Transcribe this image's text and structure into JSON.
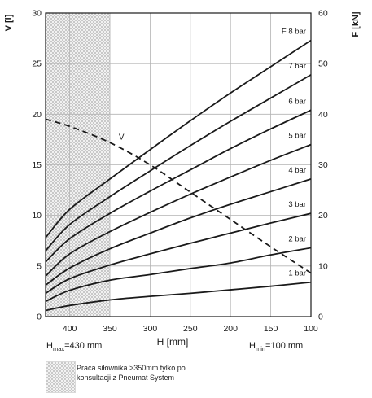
{
  "chart_data": {
    "type": "line",
    "xlabel": "H [mm]",
    "ylabel_left": "V [l]",
    "ylabel_right": "F [kN]",
    "x_ticks": [
      400,
      350,
      300,
      250,
      200,
      150,
      100
    ],
    "xlim": [
      430,
      100
    ],
    "x_reversed": true,
    "ylim_left": [
      0,
      30
    ],
    "ylim_right": [
      0,
      60
    ],
    "y_ticks_left": [
      0,
      5,
      10,
      15,
      20,
      25,
      30
    ],
    "y_ticks_right": [
      0,
      10,
      20,
      30,
      40,
      50,
      60
    ],
    "grid": true,
    "x_min_label": {
      "prefix": "H",
      "sub": "max",
      "suffix": "=430 mm"
    },
    "x_max_label": {
      "prefix": "H",
      "sub": "min",
      "suffix": "=100 mm"
    },
    "shaded_region": {
      "x_from": 430,
      "x_to": 350
    },
    "legend_text": "Praca siłownika >350mm tylko po konsultacji z Pneumat System",
    "volume_series": {
      "name": "V",
      "axis": "left",
      "style": "dashed",
      "x": [
        430,
        400,
        350,
        300,
        250,
        200,
        150,
        100
      ],
      "y": [
        19.5,
        18.8,
        17.2,
        15.0,
        12.3,
        9.6,
        6.9,
        4.3
      ]
    },
    "force_series": [
      {
        "name": "1 bar",
        "axis": "right",
        "x": [
          430,
          400,
          350,
          300,
          250,
          200,
          150,
          100
        ],
        "y": [
          1.2,
          2.2,
          3.3,
          4.0,
          4.6,
          5.3,
          6.0,
          6.8
        ]
      },
      {
        "name": "2 bar",
        "axis": "right",
        "x": [
          430,
          400,
          350,
          300,
          250,
          200,
          150,
          100
        ],
        "y": [
          3.0,
          5.2,
          7.2,
          8.3,
          9.5,
          10.6,
          12.2,
          13.6
        ]
      },
      {
        "name": "3 bar",
        "axis": "right",
        "x": [
          430,
          400,
          350,
          300,
          250,
          200,
          150,
          100
        ],
        "y": [
          4.6,
          7.5,
          10.2,
          12.4,
          14.5,
          16.5,
          18.5,
          20.4
        ]
      },
      {
        "name": "4 bar",
        "axis": "right",
        "x": [
          430,
          400,
          350,
          300,
          250,
          200,
          150,
          100
        ],
        "y": [
          6.2,
          9.6,
          13.4,
          16.5,
          19.5,
          22.2,
          24.7,
          27.2
        ]
      },
      {
        "name": "5 bar",
        "axis": "right",
        "x": [
          430,
          400,
          350,
          300,
          250,
          200,
          150,
          100
        ],
        "y": [
          8.0,
          12.4,
          16.8,
          20.6,
          24.2,
          27.6,
          30.9,
          34.0
        ]
      },
      {
        "name": "6 bar",
        "axis": "right",
        "x": [
          430,
          400,
          350,
          300,
          250,
          200,
          150,
          100
        ],
        "y": [
          10.8,
          15.4,
          20.4,
          24.8,
          29.0,
          33.2,
          37.1,
          40.8
        ]
      },
      {
        "name": "7 bar",
        "axis": "right",
        "x": [
          430,
          400,
          350,
          300,
          250,
          200,
          150,
          100
        ],
        "y": [
          13.0,
          18.2,
          23.7,
          28.8,
          33.8,
          38.6,
          43.2,
          47.8
        ]
      },
      {
        "name": "F 8 bar",
        "axis": "right",
        "x": [
          430,
          400,
          350,
          300,
          250,
          200,
          150,
          100
        ],
        "y": [
          15.6,
          21.2,
          27.2,
          33.0,
          38.7,
          44.2,
          49.4,
          54.6
        ]
      }
    ],
    "series_label_text": "V"
  },
  "colors": {
    "line": "#1a1a1a",
    "grid": "#b3b3b3",
    "shade": "#cfcfcf"
  }
}
